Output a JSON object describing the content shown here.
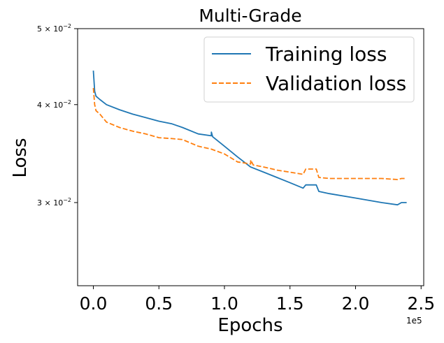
{
  "chart_data": {
    "type": "line",
    "title": "Multi-Grade",
    "xlabel": "Epochs",
    "ylabel": "Loss",
    "x_offset_label": "1e5",
    "x_ticks": [
      0,
      0.5,
      1.0,
      1.5,
      2.0,
      2.5
    ],
    "x_tick_labels": [
      "0.0",
      "0.5",
      "1.0",
      "1.5",
      "2.0",
      "2.5"
    ],
    "xlim": [
      -0.12,
      2.52
    ],
    "y_scale": "log",
    "ylim": [
      0.0235,
      0.05
    ],
    "y_ticks": [
      {
        "value": 0.05,
        "label": "5 × 10^-2",
        "mantissa": "5",
        "exponent": "−2"
      },
      {
        "value": 0.04,
        "label": "4 × 10^-2",
        "mantissa": "4",
        "exponent": "−2"
      },
      {
        "value": 0.03,
        "label": "3 × 10^-2",
        "mantissa": "3",
        "exponent": "−2"
      }
    ],
    "legend_position": "top-right",
    "series": [
      {
        "name": "Training loss",
        "color": "#1f77b4",
        "style": "solid",
        "points": [
          [
            0.0,
            0.0442
          ],
          [
            0.01,
            0.0416
          ],
          [
            0.02,
            0.041
          ],
          [
            0.05,
            0.0406
          ],
          [
            0.1,
            0.04
          ],
          [
            0.2,
            0.0394
          ],
          [
            0.3,
            0.0389
          ],
          [
            0.4,
            0.0385
          ],
          [
            0.5,
            0.0381
          ],
          [
            0.6,
            0.0378
          ],
          [
            0.68,
            0.0374
          ],
          [
            0.8,
            0.0367
          ],
          [
            0.9,
            0.0365
          ],
          [
            0.9,
            0.0369
          ],
          [
            0.91,
            0.0364
          ],
          [
            1.0,
            0.0354
          ],
          [
            1.1,
            0.0343
          ],
          [
            1.2,
            0.0333
          ],
          [
            1.3,
            0.0328
          ],
          [
            1.4,
            0.0323
          ],
          [
            1.5,
            0.0318
          ],
          [
            1.6,
            0.0313
          ],
          [
            1.62,
            0.0316
          ],
          [
            1.7,
            0.0316
          ],
          [
            1.72,
            0.031
          ],
          [
            1.8,
            0.0308
          ],
          [
            2.0,
            0.0304
          ],
          [
            2.2,
            0.03
          ],
          [
            2.32,
            0.0298
          ],
          [
            2.35,
            0.03
          ],
          [
            2.39,
            0.03
          ]
        ]
      },
      {
        "name": "Validation loss",
        "color": "#ff7f0e",
        "style": "dashed",
        "points": [
          [
            0.0,
            0.042
          ],
          [
            0.01,
            0.04
          ],
          [
            0.02,
            0.0393
          ],
          [
            0.05,
            0.0389
          ],
          [
            0.1,
            0.038
          ],
          [
            0.2,
            0.0374
          ],
          [
            0.3,
            0.037
          ],
          [
            0.4,
            0.0367
          ],
          [
            0.5,
            0.0363
          ],
          [
            0.6,
            0.0362
          ],
          [
            0.68,
            0.0361
          ],
          [
            0.8,
            0.0354
          ],
          [
            0.9,
            0.0351
          ],
          [
            1.0,
            0.0346
          ],
          [
            1.1,
            0.0338
          ],
          [
            1.2,
            0.0336
          ],
          [
            1.2,
            0.034
          ],
          [
            1.22,
            0.0335
          ],
          [
            1.3,
            0.0333
          ],
          [
            1.4,
            0.033
          ],
          [
            1.5,
            0.0328
          ],
          [
            1.6,
            0.0326
          ],
          [
            1.62,
            0.0331
          ],
          [
            1.7,
            0.0331
          ],
          [
            1.72,
            0.0323
          ],
          [
            1.8,
            0.0322
          ],
          [
            2.0,
            0.0322
          ],
          [
            2.2,
            0.0322
          ],
          [
            2.32,
            0.0321
          ],
          [
            2.35,
            0.0322
          ],
          [
            2.39,
            0.0322
          ]
        ]
      }
    ]
  }
}
